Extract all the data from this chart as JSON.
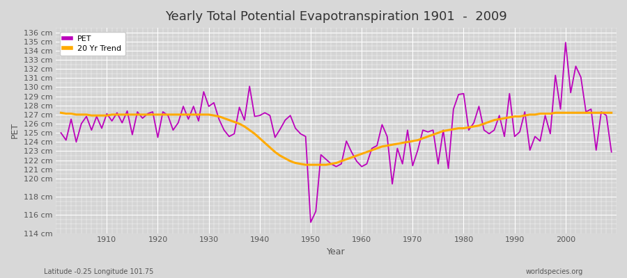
{
  "title": "Yearly Total Potential Evapotranspiration 1901  -  2009",
  "xlabel": "Year",
  "ylabel": "PET",
  "subtitle_left": "Latitude -0.25 Longitude 101.75",
  "subtitle_right": "worldspecies.org",
  "pet_color": "#bb00bb",
  "trend_color": "#ffaa00",
  "bg_color": "#d8d8d8",
  "plot_bg_color": "#d4d4d4",
  "grid_color": "#ffffff",
  "ylim": [
    114,
    136.5
  ],
  "xlim": [
    1900,
    2010
  ],
  "years": [
    1901,
    1902,
    1903,
    1904,
    1905,
    1906,
    1907,
    1908,
    1909,
    1910,
    1911,
    1912,
    1913,
    1914,
    1915,
    1916,
    1917,
    1918,
    1919,
    1920,
    1921,
    1922,
    1923,
    1924,
    1925,
    1926,
    1927,
    1928,
    1929,
    1930,
    1931,
    1932,
    1933,
    1934,
    1935,
    1936,
    1937,
    1938,
    1939,
    1940,
    1941,
    1942,
    1943,
    1944,
    1945,
    1946,
    1947,
    1948,
    1949,
    1950,
    1951,
    1952,
    1953,
    1954,
    1955,
    1956,
    1957,
    1958,
    1959,
    1960,
    1961,
    1962,
    1963,
    1964,
    1965,
    1966,
    1967,
    1968,
    1969,
    1970,
    1971,
    1972,
    1973,
    1974,
    1975,
    1976,
    1977,
    1978,
    1979,
    1980,
    1981,
    1982,
    1983,
    1984,
    1985,
    1986,
    1987,
    1988,
    1989,
    1990,
    1991,
    1992,
    1993,
    1994,
    1995,
    1996,
    1997,
    1998,
    1999,
    2000,
    2001,
    2002,
    2003,
    2004,
    2005,
    2006,
    2007,
    2008,
    2009
  ],
  "pet": [
    125.0,
    124.2,
    126.5,
    124.0,
    126.0,
    126.8,
    125.3,
    126.8,
    125.5,
    127.1,
    126.3,
    127.2,
    126.1,
    127.4,
    124.8,
    127.3,
    126.6,
    127.1,
    127.3,
    124.5,
    127.3,
    126.9,
    125.3,
    126.1,
    127.9,
    126.5,
    127.9,
    126.3,
    129.5,
    127.9,
    128.3,
    126.5,
    125.3,
    124.6,
    124.9,
    127.8,
    126.4,
    130.1,
    126.8,
    126.9,
    127.2,
    126.9,
    124.5,
    125.4,
    126.4,
    126.9,
    125.5,
    124.9,
    124.6,
    115.2,
    116.4,
    122.6,
    122.1,
    121.6,
    121.3,
    121.6,
    124.1,
    122.9,
    121.9,
    121.3,
    121.6,
    123.3,
    123.6,
    125.9,
    124.6,
    119.4,
    123.3,
    121.6,
    125.3,
    121.4,
    123.1,
    125.3,
    125.1,
    125.3,
    121.6,
    125.3,
    121.1,
    127.6,
    129.2,
    129.3,
    125.3,
    126.1,
    127.9,
    125.3,
    124.9,
    125.3,
    126.9,
    124.6,
    129.3,
    124.6,
    125.1,
    127.3,
    123.1,
    124.6,
    124.1,
    126.9,
    124.9,
    131.3,
    127.6,
    134.9,
    129.4,
    132.3,
    131.1,
    127.3,
    127.6,
    123.1,
    127.3,
    126.9,
    122.9
  ],
  "trend": [
    127.2,
    127.1,
    127.1,
    127.0,
    127.0,
    127.0,
    126.9,
    126.9,
    126.9,
    126.9,
    127.0,
    127.0,
    127.0,
    127.0,
    127.0,
    127.0,
    127.0,
    127.0,
    127.0,
    127.0,
    127.0,
    127.0,
    127.0,
    127.0,
    127.0,
    127.0,
    127.0,
    127.0,
    127.0,
    127.0,
    126.9,
    126.8,
    126.6,
    126.4,
    126.2,
    126.0,
    125.7,
    125.3,
    124.9,
    124.4,
    123.9,
    123.4,
    122.9,
    122.5,
    122.2,
    121.9,
    121.7,
    121.6,
    121.5,
    121.5,
    121.5,
    121.5,
    121.5,
    121.6,
    121.7,
    121.9,
    122.1,
    122.3,
    122.5,
    122.7,
    122.9,
    123.1,
    123.3,
    123.5,
    123.6,
    123.7,
    123.8,
    123.9,
    124.0,
    124.1,
    124.2,
    124.4,
    124.6,
    124.8,
    125.0,
    125.2,
    125.3,
    125.4,
    125.5,
    125.5,
    125.6,
    125.7,
    125.8,
    126.0,
    126.2,
    126.4,
    126.5,
    126.6,
    126.7,
    126.8,
    126.8,
    126.9,
    127.0,
    127.0,
    127.1,
    127.1,
    127.1,
    127.2,
    127.2,
    127.2,
    127.2,
    127.2,
    127.2,
    127.2,
    127.2,
    127.2,
    127.2,
    127.2,
    127.2
  ],
  "ytick_vals": [
    114,
    116,
    118,
    120,
    121,
    122,
    123,
    124,
    125,
    126,
    127,
    128,
    129,
    130,
    131,
    132,
    133,
    134,
    135,
    136
  ],
  "ytick_labels": [
    "114 cm",
    "116 cm",
    "118 cm",
    "120 cm",
    "121 cm",
    "122 cm",
    "123 cm",
    "124 cm",
    "125 cm",
    "126 cm",
    "127 cm",
    "128 cm",
    "129 cm",
    "130 cm",
    "131 cm",
    "132 cm",
    "133 cm",
    "134 cm",
    "135 cm",
    "136 cm"
  ],
  "xtick_vals": [
    1910,
    1920,
    1930,
    1940,
    1950,
    1960,
    1970,
    1980,
    1990,
    2000
  ],
  "title_fontsize": 13,
  "label_fontsize": 9,
  "tick_fontsize": 8,
  "legend_fontsize": 8
}
